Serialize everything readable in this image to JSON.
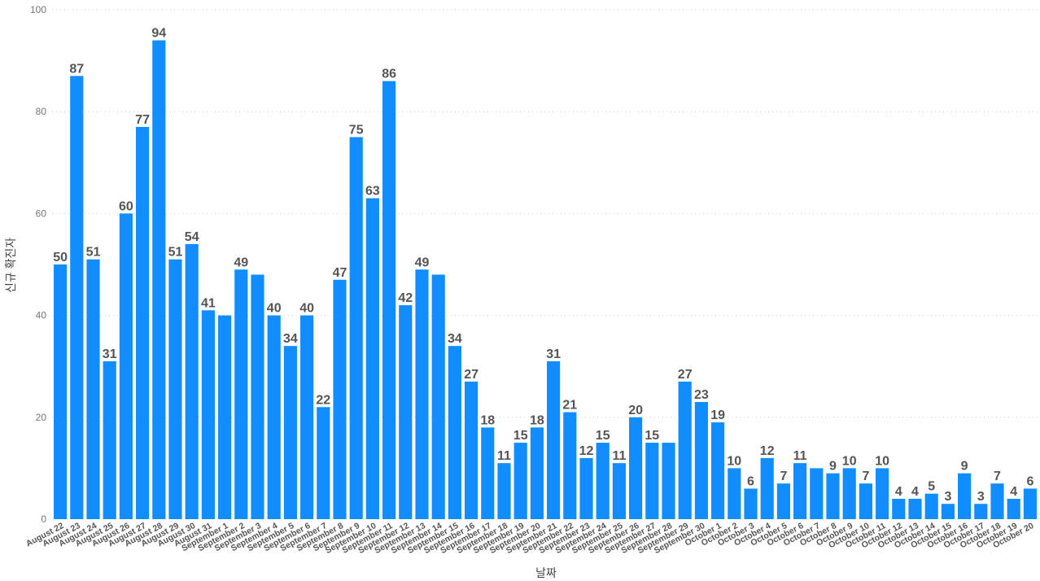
{
  "chart_data": {
    "type": "bar",
    "xlabel": "날짜",
    "ylabel": "신규 확진자",
    "ylim": [
      0,
      100
    ],
    "yticks": [
      0,
      20,
      40,
      60,
      80,
      100
    ],
    "grid": true,
    "bar_color": "#118DFF",
    "label_color": "#555555",
    "categories": [
      "August 22",
      "August 23",
      "August 24",
      "August 25",
      "August 26",
      "August 27",
      "August 28",
      "August 29",
      "August 30",
      "August 31",
      "September 1",
      "September 2",
      "September 3",
      "September 4",
      "September 5",
      "September 6",
      "September 7",
      "September 8",
      "September 9",
      "September 10",
      "September 11",
      "September 12",
      "September 13",
      "September 14",
      "September 15",
      "September 16",
      "September 17",
      "September 18",
      "September 19",
      "September 20",
      "September 21",
      "September 22",
      "September 23",
      "September 24",
      "September 25",
      "September 26",
      "September 27",
      "September 28",
      "September 29",
      "September 30",
      "October 1",
      "October 2",
      "October 3",
      "October 4",
      "October 5",
      "October 6",
      "October 7",
      "October 8",
      "October 9",
      "October 10",
      "October 11",
      "October 12",
      "October 13",
      "October 14",
      "October 15",
      "October 16",
      "October 17",
      "October 18",
      "October 19",
      "October 20"
    ],
    "values": [
      50,
      87,
      51,
      31,
      60,
      77,
      94,
      51,
      54,
      41,
      40,
      49,
      48,
      40,
      34,
      40,
      22,
      47,
      75,
      63,
      86,
      42,
      49,
      48,
      34,
      27,
      18,
      11,
      15,
      18,
      31,
      21,
      12,
      15,
      11,
      20,
      15,
      15,
      27,
      23,
      19,
      10,
      6,
      12,
      7,
      11,
      10,
      9,
      10,
      7,
      10,
      4,
      4,
      5,
      3,
      9,
      3,
      7,
      4,
      6
    ],
    "data_labels": [
      "50",
      "87",
      "51",
      "31",
      "60",
      "77",
      "94",
      "51",
      "54",
      "41",
      "",
      "49",
      "",
      "40",
      "34",
      "40",
      "22",
      "47",
      "75",
      "63",
      "86",
      "42",
      "49",
      "",
      "34",
      "27",
      "18",
      "11",
      "15",
      "18",
      "31",
      "21",
      "12",
      "15",
      "11",
      "20",
      "15",
      "",
      "27",
      "23",
      "19",
      "10",
      "6",
      "12",
      "7",
      "11",
      "",
      "9",
      "10",
      "7",
      "10",
      "4",
      "4",
      "5",
      "3",
      "9",
      "3",
      "7",
      "4",
      "6"
    ]
  }
}
